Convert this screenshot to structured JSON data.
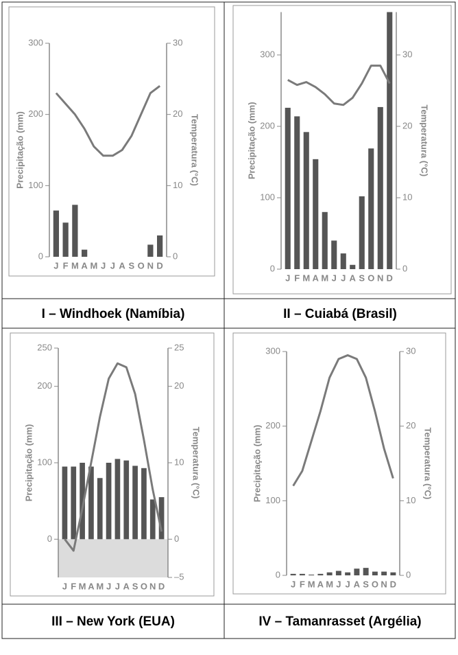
{
  "chart_data": [
    {
      "type": "bar",
      "title": "I – Windhoek (Namíbia)",
      "y_label": "Precipitação (mm)",
      "y2_label": "Temperatura (°C)",
      "categories": [
        "J",
        "F",
        "M",
        "A",
        "M",
        "J",
        "J",
        "A",
        "S",
        "O",
        "N",
        "D"
      ],
      "ylim": [
        0,
        300
      ],
      "yticks": [
        0,
        100,
        200,
        300
      ],
      "y2lim": [
        0,
        30
      ],
      "y2ticks": [
        0,
        10,
        20,
        30
      ],
      "series": [
        {
          "color": "#555555",
          "values": [
            65,
            48,
            73,
            10,
            0,
            0,
            0,
            0,
            0,
            0,
            17,
            30
          ]
        },
        {
          "color": "#7a7a7a",
          "axis": "y2",
          "type": "line",
          "values": [
            23,
            21.5,
            20,
            18,
            15.5,
            14.2,
            14.2,
            15,
            17,
            20,
            23,
            24
          ]
        }
      ]
    },
    {
      "type": "bar",
      "title": "II – Cuiabá (Brasil)",
      "y_label": "Precipitação (mm)",
      "y2_label": "Temperatura (°C)",
      "categories": [
        "J",
        "F",
        "M",
        "A",
        "M",
        "J",
        "J",
        "A",
        "S",
        "O",
        "N",
        "D"
      ],
      "ylim": [
        0,
        360
      ],
      "yticks": [
        0,
        100,
        200,
        300
      ],
      "y2lim": [
        0,
        36
      ],
      "y2ticks": [
        0,
        10,
        20,
        30
      ],
      "series": [
        {
          "color": "#555555",
          "values": [
            226,
            214,
            192,
            154,
            80,
            40,
            22,
            6,
            102,
            169,
            227,
            360
          ]
        },
        {
          "color": "#7a7a7a",
          "axis": "y2",
          "type": "line",
          "values": [
            26.5,
            25.8,
            26.2,
            25.5,
            24.5,
            23.2,
            23,
            24,
            26,
            28.5,
            28.5,
            26
          ]
        }
      ]
    },
    {
      "type": "bar",
      "title": "III – New York (EUA)",
      "y_label": "Precipitação (mm)",
      "y2_label": "Temperatura (°C)",
      "categories": [
        "J",
        "F",
        "M",
        "A",
        "M",
        "J",
        "J",
        "A",
        "S",
        "O",
        "N",
        "D"
      ],
      "ylim": [
        -50,
        250
      ],
      "yticks": [
        0,
        100,
        200,
        250
      ],
      "y2lim": [
        -5,
        25
      ],
      "y2ticks": [
        {
          "value": -5,
          "label": "–5"
        },
        0,
        10,
        20,
        25
      ],
      "series": [
        {
          "color": "#555555",
          "values": [
            95,
            95,
            100,
            95,
            80,
            100,
            105,
            103,
            96,
            93,
            52,
            55
          ]
        },
        {
          "color": "#7a7a7a",
          "axis": "y2",
          "type": "line",
          "values": [
            0,
            -1.5,
            4,
            10,
            16,
            21,
            23,
            22.5,
            19,
            13,
            6.5,
            1
          ]
        }
      ]
    },
    {
      "type": "bar",
      "title": "IV – Tamanrasset (Argélia)",
      "y_label": "Precipitação (mm)",
      "y2_label": "Temperatura (°C)",
      "categories": [
        "J",
        "F",
        "M",
        "A",
        "M",
        "J",
        "J",
        "A",
        "S",
        "O",
        "N",
        "D"
      ],
      "ylim": [
        0,
        300
      ],
      "yticks": [
        0,
        100,
        200,
        300
      ],
      "y2lim": [
        0,
        30
      ],
      "y2ticks": [
        0,
        10,
        20,
        30
      ],
      "series": [
        {
          "color": "#555555",
          "values": [
            2,
            2,
            1,
            2,
            4,
            6,
            4,
            9,
            10,
            5,
            5,
            4
          ]
        },
        {
          "color": "#7a7a7a",
          "axis": "y2",
          "type": "line",
          "values": [
            12,
            14,
            18,
            22,
            26.5,
            29,
            29.5,
            29,
            26.5,
            22,
            17,
            13
          ]
        }
      ]
    }
  ]
}
